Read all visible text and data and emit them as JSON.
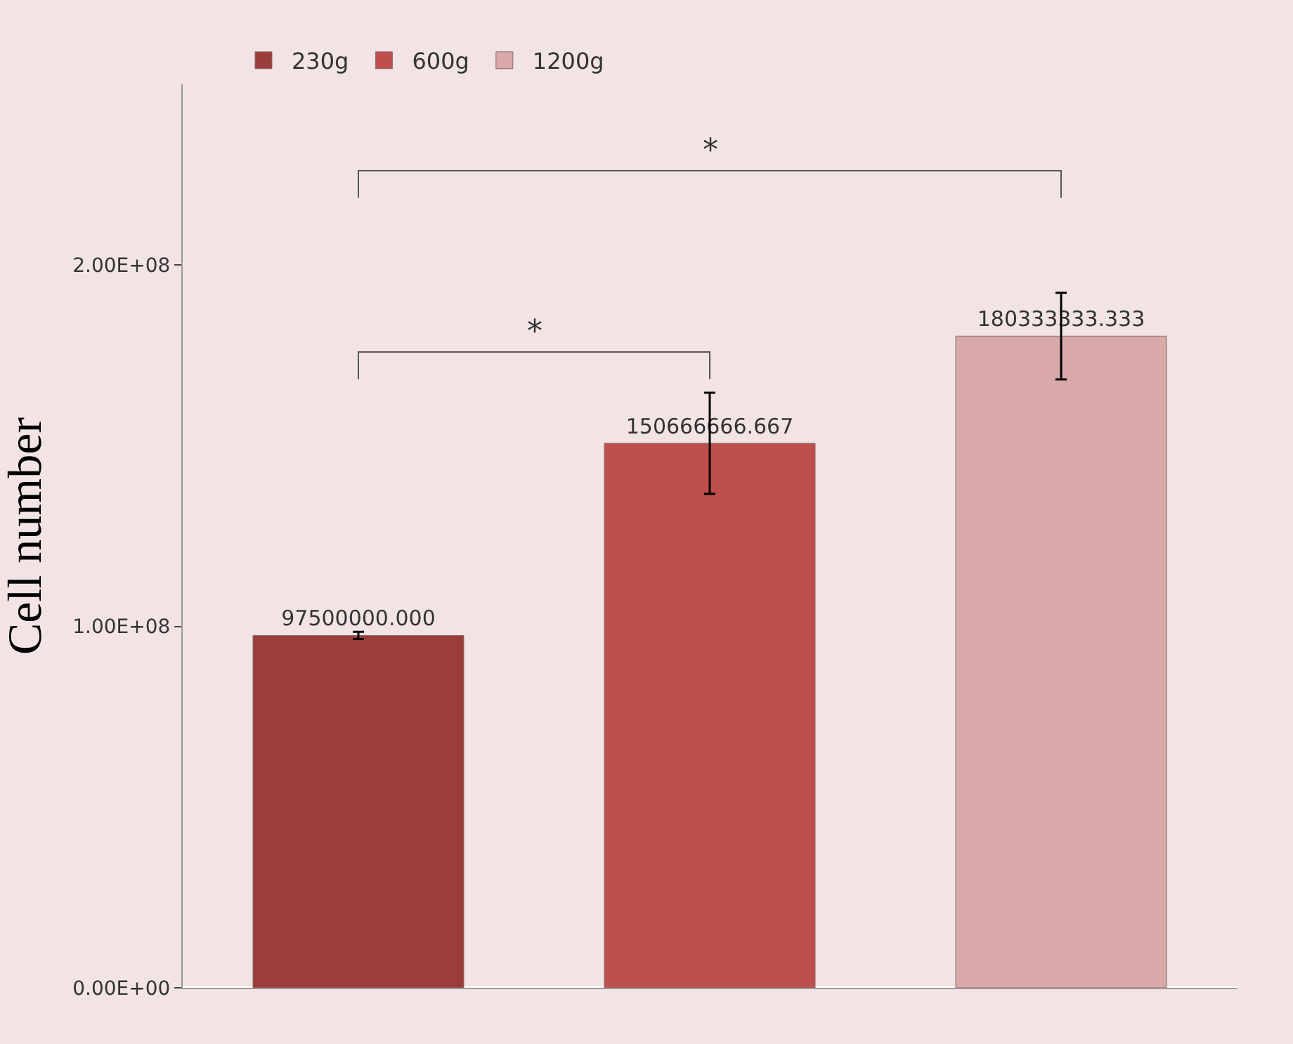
{
  "chart_data": {
    "type": "bar",
    "ylabel": "Cell number",
    "categories": [
      null,
      null,
      null
    ],
    "series": [
      {
        "name": "230g",
        "color": "#9b3d3b",
        "values": [
          97500000,
          null,
          null
        ],
        "errors": [
          1000000,
          null,
          null
        ],
        "value_labels": [
          "97500000.000",
          null,
          null
        ]
      },
      {
        "name": "600g",
        "color": "#bf4f4d",
        "values": [
          null,
          150666666.667,
          null
        ],
        "errors": [
          null,
          14000000,
          null
        ],
        "value_labels": [
          null,
          "150666666.667",
          null
        ]
      },
      {
        "name": "1200g",
        "color": "#d9a8a8",
        "values": [
          null,
          null,
          180333333.333
        ],
        "errors": [
          null,
          null,
          12000000
        ],
        "value_labels": [
          null,
          null,
          "180333333.333"
        ]
      }
    ],
    "ylim": [
      0,
      250000000
    ],
    "yticks": [
      {
        "value": 0,
        "label": "0.00E+00"
      },
      {
        "value": 100000000,
        "label": "1.00E+08"
      },
      {
        "value": 200000000,
        "label": "2.00E+08"
      }
    ],
    "annotations": [
      "*",
      "*"
    ],
    "grid": false,
    "legend": "top"
  }
}
